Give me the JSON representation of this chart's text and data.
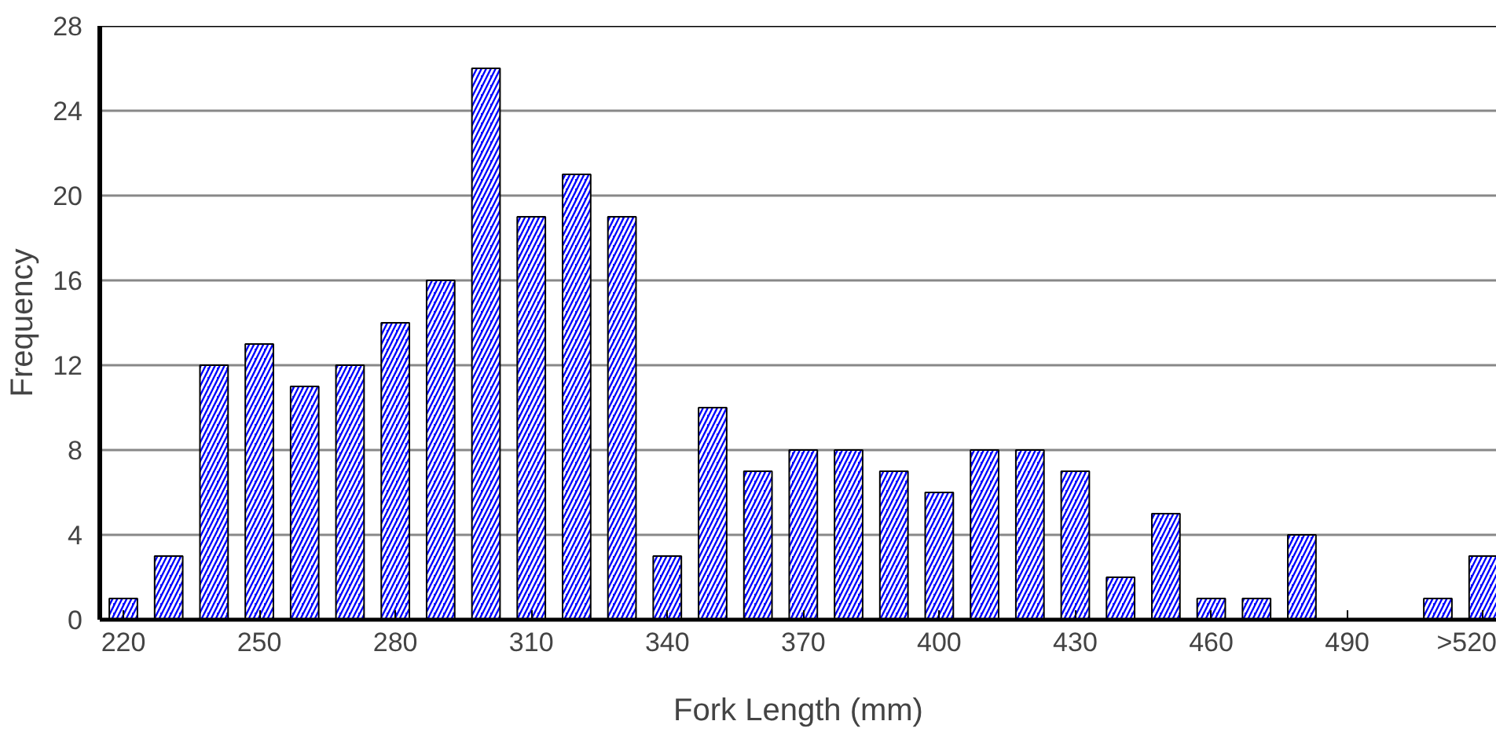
{
  "chart_data": {
    "type": "bar",
    "xlabel": "Fork Length (mm)",
    "ylabel": "Frequency",
    "categories": [
      "220",
      null,
      null,
      "250",
      null,
      null,
      "280",
      null,
      null,
      "310",
      null,
      null,
      "340",
      null,
      null,
      "370",
      null,
      null,
      "400",
      null,
      null,
      "430",
      null,
      null,
      "460",
      null,
      null,
      "490",
      null,
      null,
      ">520"
    ],
    "series": [
      {
        "color": "#0000ff",
        "values": [
          1,
          3,
          12,
          13,
          11,
          12,
          14,
          16,
          26,
          19,
          21,
          19,
          3,
          10,
          7,
          8,
          8,
          7,
          6,
          8,
          8,
          7,
          2,
          5,
          1,
          1,
          4,
          0,
          0,
          1,
          3
        ]
      }
    ],
    "ylim": [
      0,
      28
    ],
    "yticks": [
      0,
      4,
      8,
      12,
      16,
      20,
      24,
      28
    ],
    "grid": "y"
  }
}
